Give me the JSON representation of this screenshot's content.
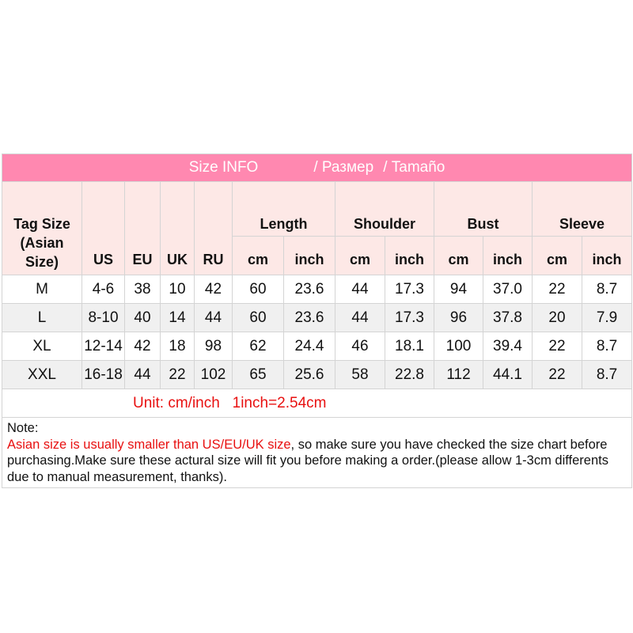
{
  "title": {
    "en": "Size INFO",
    "ru": "/ Размер",
    "es": "/ Tamaño"
  },
  "headers": {
    "tag": "Tag Size (Asian Size)",
    "us": "US",
    "eu": "EU",
    "uk": "UK",
    "ru": "RU",
    "groups": [
      "Length",
      "Shoulder",
      "Bust",
      "Sleeve"
    ],
    "cm": "cm",
    "inch": "inch"
  },
  "rows": [
    [
      "M",
      "4-6",
      "38",
      "10",
      "42",
      "60",
      "23.6",
      "44",
      "17.3",
      "94",
      "37.0",
      "22",
      "8.7"
    ],
    [
      "L",
      "8-10",
      "40",
      "14",
      "44",
      "60",
      "23.6",
      "44",
      "17.3",
      "96",
      "37.8",
      "20",
      "7.9"
    ],
    [
      "XL",
      "12-14",
      "42",
      "18",
      "98",
      "62",
      "24.4",
      "46",
      "18.1",
      "100",
      "39.4",
      "22",
      "8.7"
    ],
    [
      "XXL",
      "16-18",
      "44",
      "22",
      "102",
      "65",
      "25.6",
      "58",
      "22.8",
      "112",
      "44.1",
      "22",
      "8.7"
    ]
  ],
  "unit": "Unit: cm/inch   1inch=2.54cm",
  "note": {
    "label": "Note:",
    "highlight": "Asian size is usually smaller than US/EU/UK size",
    "text": ", so make sure you have checked the size chart before purchasing.Make sure these actural size will fit you before making a order.(please allow 1-3cm differents due to manual measurement, thanks)."
  },
  "colors": {
    "header": "#ff88b0",
    "subheader": "#fde8e6",
    "alert": "#e81010"
  }
}
